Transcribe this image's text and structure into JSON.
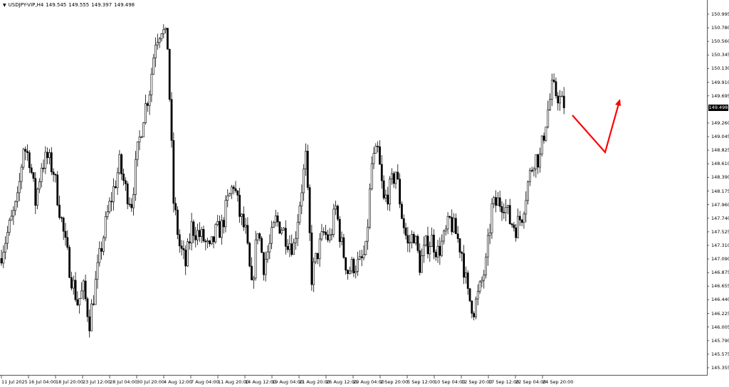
{
  "header": {
    "symbol": "USDJPY-VIP,H4",
    "open": "149.545",
    "high": "149.555",
    "low": "149.397",
    "close": "149.498"
  },
  "chart_data": {
    "type": "candlestick",
    "title": "USDJPY-VIP,H4",
    "ylim": [
      145.355,
      150.995
    ],
    "y_ticks": [
      "150.995",
      "150.780",
      "150.560",
      "150.345",
      "150.130",
      "149.910",
      "149.695",
      "149.498",
      "149.260",
      "149.045",
      "148.825",
      "148.610",
      "148.390",
      "148.175",
      "147.960",
      "147.740",
      "147.525",
      "147.310",
      "147.090",
      "146.875",
      "146.655",
      "146.440",
      "146.225",
      "146.005",
      "145.790",
      "145.575",
      "145.355"
    ],
    "current_price": "149.498",
    "x_ticks": [
      "11 Jul 2025",
      "16 Jul 04:00",
      "18 Jul 20:00",
      "23 Jul 12:00",
      "28 Jul 04:00",
      "30 Jul 20:00",
      "4 Aug 12:00",
      "7 Aug 04:00",
      "11 Aug 20:00",
      "14 Aug 12:00",
      "19 Aug 04:00",
      "21 Aug 20:00",
      "26 Aug 12:00",
      "29 Aug 04:00",
      "2 Sep 20:00",
      "5 Sep 12:00",
      "10 Sep 04:00",
      "12 Sep 20:00",
      "17 Sep 12:00",
      "22 Sep 04:00",
      "24 Sep 20:00"
    ],
    "approx_closes": [
      147.1,
      147.4,
      147.7,
      148.0,
      148.9,
      148.7,
      148.0,
      148.6,
      148.7,
      148.5,
      147.9,
      147.3,
      146.8,
      146.4,
      146.6,
      146.1,
      146.7,
      147.3,
      147.8,
      148.2,
      148.6,
      148.2,
      148.0,
      148.8,
      149.4,
      149.8,
      150.6,
      150.8,
      150.5,
      148.0,
      147.3,
      147.0,
      147.6,
      147.5,
      147.4,
      147.2,
      147.5,
      147.6,
      148.0,
      148.3,
      147.8,
      147.5,
      146.6,
      147.6,
      147.0,
      147.3,
      147.7,
      147.6,
      147.4,
      147.3,
      148.0,
      148.7,
      146.8,
      147.2,
      147.5,
      147.4,
      147.9,
      147.3,
      146.9,
      147.0,
      147.0,
      147.2,
      148.6,
      148.8,
      148.0,
      148.2,
      148.5,
      147.8,
      147.3,
      147.5,
      147.0,
      147.3,
      147.4,
      147.2,
      147.4,
      147.7,
      147.5,
      147.2,
      146.5,
      146.3,
      146.6,
      147.0,
      147.9,
      148.0,
      148.0,
      147.7,
      147.6,
      147.8,
      148.3,
      148.7,
      148.7,
      149.3,
      149.8,
      149.7,
      149.5
    ],
    "candle_color": "#000000",
    "annotation": {
      "type": "arrow",
      "color": "#ff0000"
    },
    "grid": false
  }
}
